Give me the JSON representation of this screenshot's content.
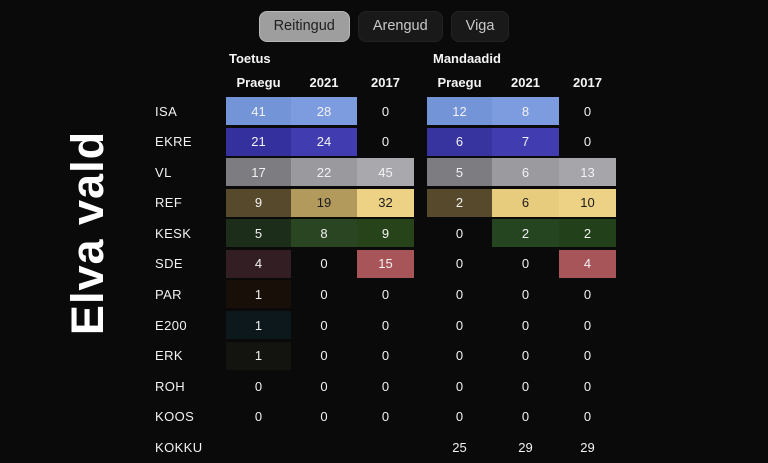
{
  "title": "Elva vald",
  "tabs": [
    {
      "label": "Reitingud",
      "active": true
    },
    {
      "label": "Arengud",
      "active": false
    },
    {
      "label": "Viga",
      "active": false
    }
  ],
  "table": {
    "sections": [
      {
        "name": "Toetus",
        "columns": [
          "Praegu",
          "2021",
          "2017"
        ]
      },
      {
        "name": "Mandaadid",
        "columns": [
          "Praegu",
          "2021",
          "2017"
        ]
      }
    ],
    "rows": [
      {
        "party": "ISA",
        "toetus": [
          {
            "v": "41",
            "bg": "#7494d8"
          },
          {
            "v": "28",
            "bg": "#7d9bdf"
          },
          {
            "v": "0",
            "bg": null
          }
        ],
        "mandaadid": [
          {
            "v": "12",
            "bg": "#7494d8"
          },
          {
            "v": "8",
            "bg": "#7d9bdf"
          },
          {
            "v": "0",
            "bg": null
          }
        ]
      },
      {
        "party": "EKRE",
        "toetus": [
          {
            "v": "21",
            "bg": "#34309e"
          },
          {
            "v": "24",
            "bg": "#413db1"
          },
          {
            "v": "0",
            "bg": null
          }
        ],
        "mandaadid": [
          {
            "v": "6",
            "bg": "#37339f"
          },
          {
            "v": "7",
            "bg": "#413db1"
          },
          {
            "v": "0",
            "bg": null
          }
        ]
      },
      {
        "party": "VL",
        "toetus": [
          {
            "v": "17",
            "bg": "#7c7c81"
          },
          {
            "v": "22",
            "bg": "#99999e"
          },
          {
            "v": "45",
            "bg": "#a8a8ad"
          }
        ],
        "mandaadid": [
          {
            "v": "5",
            "bg": "#7c7c81"
          },
          {
            "v": "6",
            "bg": "#9a9a9f"
          },
          {
            "v": "13",
            "bg": "#a5a5aa"
          }
        ]
      },
      {
        "party": "REF",
        "toetus": [
          {
            "v": "9",
            "bg": "#57492c"
          },
          {
            "v": "19",
            "bg": "#b29a5d",
            "dark": true
          },
          {
            "v": "32",
            "bg": "#edd286",
            "dark": true
          }
        ],
        "mandaadid": [
          {
            "v": "2",
            "bg": "#57492c"
          },
          {
            "v": "6",
            "bg": "#e7cc7e",
            "dark": true
          },
          {
            "v": "10",
            "bg": "#edd286",
            "dark": true
          }
        ]
      },
      {
        "party": "KESK",
        "toetus": [
          {
            "v": "5",
            "bg": "#1c2d1a"
          },
          {
            "v": "8",
            "bg": "#2a4522"
          },
          {
            "v": "9",
            "bg": "#27431a"
          }
        ],
        "mandaadid": [
          {
            "v": "0",
            "bg": null
          },
          {
            "v": "2",
            "bg": "#254420"
          },
          {
            "v": "2",
            "bg": "#22411a"
          }
        ]
      },
      {
        "party": "SDE",
        "toetus": [
          {
            "v": "4",
            "bg": "#331f23"
          },
          {
            "v": "0",
            "bg": null
          },
          {
            "v": "15",
            "bg": "#a75559"
          }
        ],
        "mandaadid": [
          {
            "v": "0",
            "bg": null
          },
          {
            "v": "0",
            "bg": null
          },
          {
            "v": "4",
            "bg": "#a75559"
          }
        ]
      },
      {
        "party": "PAR",
        "toetus": [
          {
            "v": "1",
            "bg": "#180f08"
          },
          {
            "v": "0",
            "bg": null
          },
          {
            "v": "0",
            "bg": null
          }
        ],
        "mandaadid": [
          {
            "v": "0",
            "bg": null
          },
          {
            "v": "0",
            "bg": null
          },
          {
            "v": "0",
            "bg": null
          }
        ]
      },
      {
        "party": "E200",
        "toetus": [
          {
            "v": "1",
            "bg": "#0d181c"
          },
          {
            "v": "0",
            "bg": null
          },
          {
            "v": "0",
            "bg": null
          }
        ],
        "mandaadid": [
          {
            "v": "0",
            "bg": null
          },
          {
            "v": "0",
            "bg": null
          },
          {
            "v": "0",
            "bg": null
          }
        ]
      },
      {
        "party": "ERK",
        "toetus": [
          {
            "v": "1",
            "bg": "#131310"
          },
          {
            "v": "0",
            "bg": null
          },
          {
            "v": "0",
            "bg": null
          }
        ],
        "mandaadid": [
          {
            "v": "0",
            "bg": null
          },
          {
            "v": "0",
            "bg": null
          },
          {
            "v": "0",
            "bg": null
          }
        ]
      },
      {
        "party": "ROH",
        "toetus": [
          {
            "v": "0",
            "bg": null
          },
          {
            "v": "0",
            "bg": null
          },
          {
            "v": "0",
            "bg": null
          }
        ],
        "mandaadid": [
          {
            "v": "0",
            "bg": null
          },
          {
            "v": "0",
            "bg": null
          },
          {
            "v": "0",
            "bg": null
          }
        ]
      },
      {
        "party": "KOOS",
        "toetus": [
          {
            "v": "0",
            "bg": null
          },
          {
            "v": "0",
            "bg": null
          },
          {
            "v": "0",
            "bg": null
          }
        ],
        "mandaadid": [
          {
            "v": "0",
            "bg": null
          },
          {
            "v": "0",
            "bg": null
          },
          {
            "v": "0",
            "bg": null
          }
        ]
      },
      {
        "party": "KOKKU",
        "toetus": [
          {
            "v": "",
            "bg": null
          },
          {
            "v": "",
            "bg": null
          },
          {
            "v": "",
            "bg": null
          }
        ],
        "mandaadid": [
          {
            "v": "25",
            "bg": null
          },
          {
            "v": "29",
            "bg": null
          },
          {
            "v": "29",
            "bg": null
          }
        ]
      }
    ]
  },
  "colors": {
    "background": "#0a0a0a",
    "text_light": "#f2f2f2",
    "text_dark": "#1c1c1c",
    "tab_active_bg": "#9e9e9e",
    "tab_active_text": "#1f1f1f",
    "tab_inactive_bg": "#191919",
    "tab_inactive_text": "#c9c9c9"
  }
}
